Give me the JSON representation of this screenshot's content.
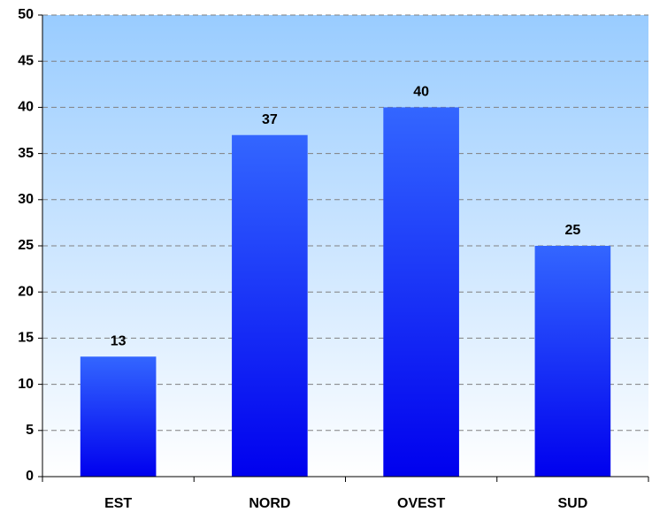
{
  "chart_data": {
    "type": "bar",
    "categories": [
      "EST",
      "NORD",
      "OVEST",
      "SUD"
    ],
    "values": [
      13,
      37,
      40,
      25
    ],
    "color": "#3366ff",
    "ylim": [
      0,
      50
    ],
    "yticks": [
      0,
      5,
      10,
      15,
      20,
      25,
      30,
      35,
      40,
      45,
      50
    ],
    "grid": true
  }
}
